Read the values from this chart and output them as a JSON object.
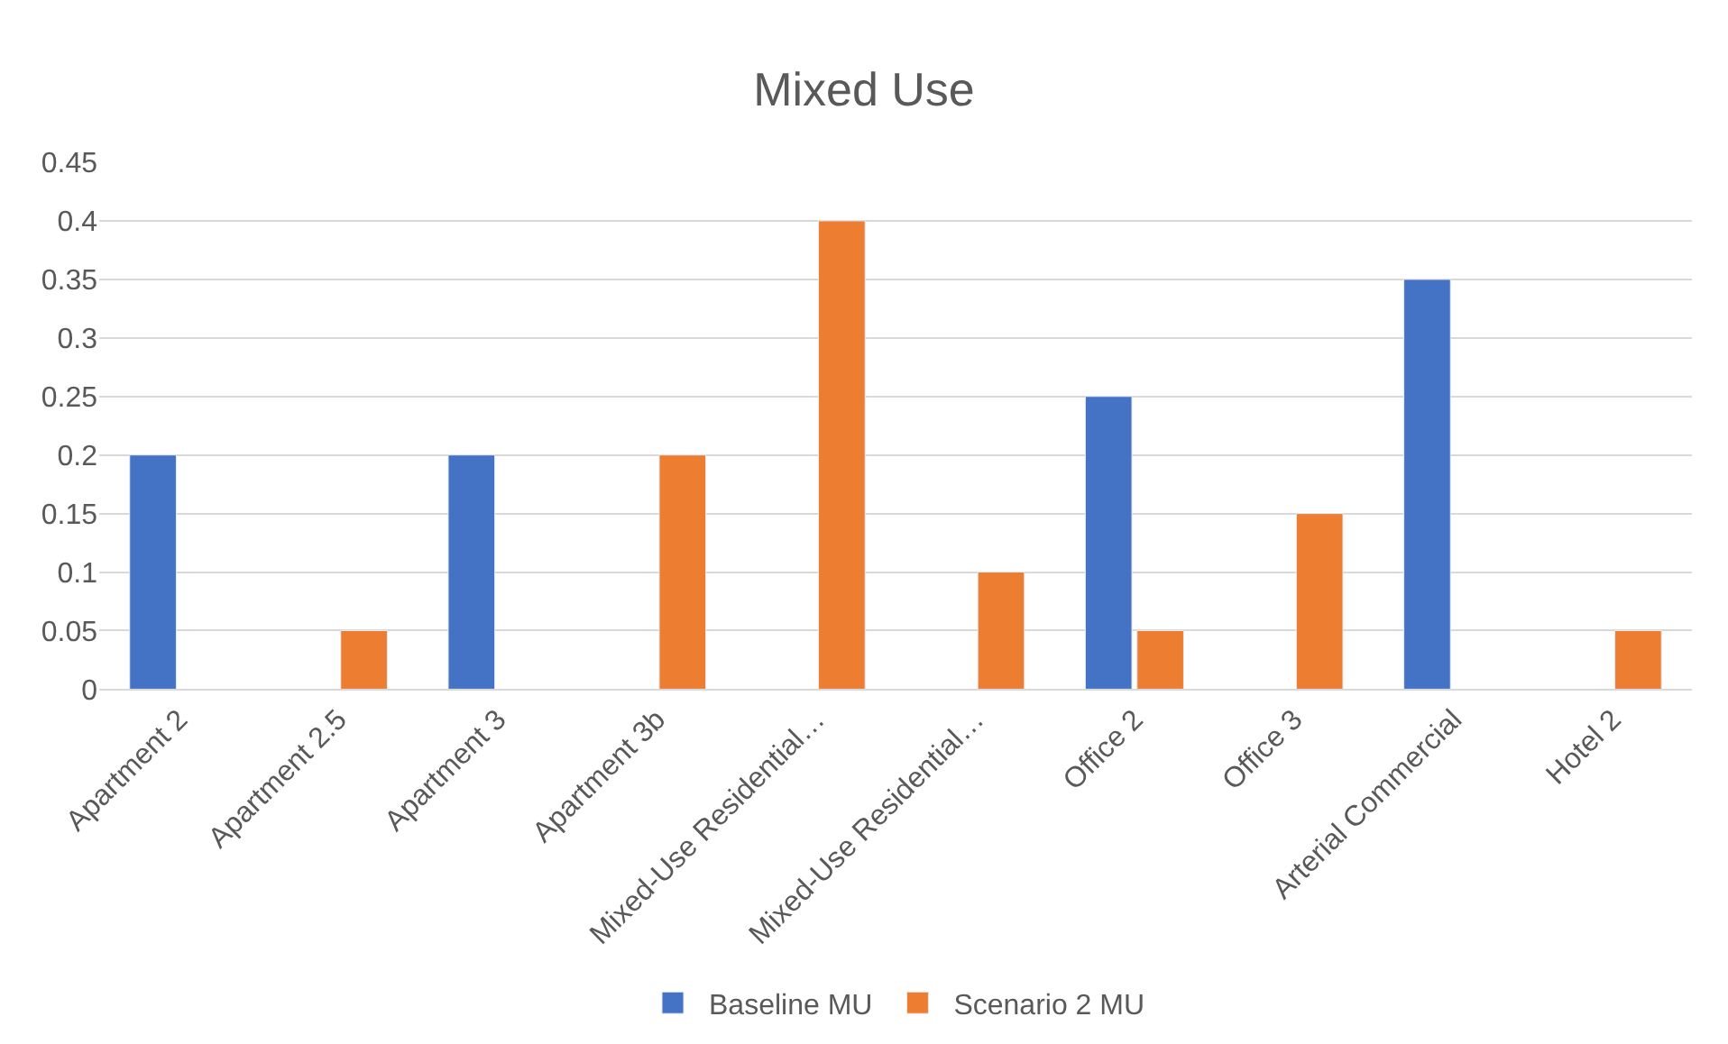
{
  "chart_data": {
    "type": "bar",
    "title": "Mixed Use",
    "categories": [
      "Apartment 2",
      "Apartment 2.5",
      "Apartment 3",
      "Apartment 3b",
      "Mixed-Use Residential…",
      "Mixed-Use Residential…",
      "Office 2",
      "Office 3",
      "Arterial Commercial",
      "Hotel 2"
    ],
    "series": [
      {
        "name": "Baseline MU",
        "color": "#4472c4",
        "values": [
          0.2,
          null,
          0.2,
          null,
          null,
          null,
          0.25,
          null,
          0.35,
          null
        ]
      },
      {
        "name": "Scenario 2 MU",
        "color": "#ed7d31",
        "values": [
          null,
          0.05,
          null,
          0.2,
          0.4,
          0.1,
          0.05,
          0.15,
          null,
          0.05
        ]
      }
    ],
    "ylim": [
      0,
      0.45
    ],
    "yticks": [
      0,
      0.05,
      0.1,
      0.15,
      0.2,
      0.25,
      0.3,
      0.35,
      0.4,
      0.45
    ],
    "grid": "y",
    "legend": "bottom"
  }
}
